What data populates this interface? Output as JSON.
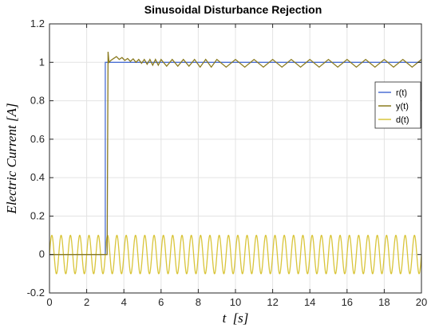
{
  "chart_data": {
    "type": "line",
    "title": "Sinusoidal Disturbance Rejection",
    "xlabel": "t [s]",
    "xlabel_var": "t",
    "xlabel_unit": "[s]",
    "ylabel": "Electric Current [A]",
    "xlim": [
      0,
      20
    ],
    "ylim": [
      -0.2,
      1.2
    ],
    "xticks": [
      0,
      2,
      4,
      6,
      8,
      10,
      12,
      14,
      16,
      18,
      20
    ],
    "yticks": [
      -0.2,
      0,
      0.2,
      0.4,
      0.6,
      0.8,
      1,
      1.2
    ],
    "xtick_labels": [
      "0",
      "2",
      "4",
      "6",
      "8",
      "10",
      "12",
      "14",
      "16",
      "18",
      "20"
    ],
    "ytick_labels": [
      "-0.2",
      "0",
      "0.2",
      "0.4",
      "0.6",
      "0.8",
      "1",
      "1.2"
    ],
    "grid": true,
    "legend_position": "right",
    "series": [
      {
        "name": "r(t)",
        "color": "#4a6fd4",
        "x": [
          0,
          3.0,
          3.0,
          20
        ],
        "y": [
          0,
          0,
          1,
          1
        ]
      },
      {
        "name": "y(t)",
        "color": "#8a7a1e",
        "x": [
          0,
          3.1,
          3.15,
          3.2,
          3.3,
          3.45,
          3.6,
          3.75,
          3.9,
          4.05,
          4.2,
          4.35,
          4.5,
          4.65,
          4.8,
          4.95,
          5.1,
          5.25,
          5.4,
          5.55,
          5.7,
          5.85,
          6.0,
          6.3,
          6.6,
          6.9,
          7.2,
          7.5,
          7.8,
          8.1,
          8.4,
          8.7,
          9.0,
          9.5,
          10.0,
          10.5,
          11.0,
          11.5,
          12.0,
          12.5,
          13.0,
          13.5,
          14.0,
          14.5,
          15.0,
          15.5,
          16.0,
          16.5,
          17.0,
          17.5,
          18.0,
          18.5,
          19.0,
          19.5,
          20.0
        ],
        "y": [
          0,
          0,
          1.055,
          1.0,
          1.01,
          1.02,
          1.03,
          1.015,
          1.025,
          1.01,
          1.02,
          1.005,
          1.018,
          1.0,
          1.015,
          0.995,
          1.015,
          0.99,
          1.015,
          0.985,
          1.015,
          0.985,
          1.015,
          0.98,
          1.015,
          0.98,
          1.015,
          0.98,
          1.015,
          0.975,
          1.015,
          0.975,
          1.015,
          0.975,
          1.015,
          0.975,
          1.015,
          0.975,
          1.015,
          0.975,
          1.015,
          0.975,
          1.015,
          0.975,
          1.015,
          0.975,
          1.015,
          0.975,
          1.015,
          0.975,
          1.015,
          0.975,
          1.015,
          0.975,
          1.015
        ]
      },
      {
        "name": "d(t)",
        "color": "#d9c53a",
        "amplitude": 0.1,
        "period_s": 0.5,
        "function": "0.1*sin(2*pi*t/0.5)"
      }
    ]
  }
}
